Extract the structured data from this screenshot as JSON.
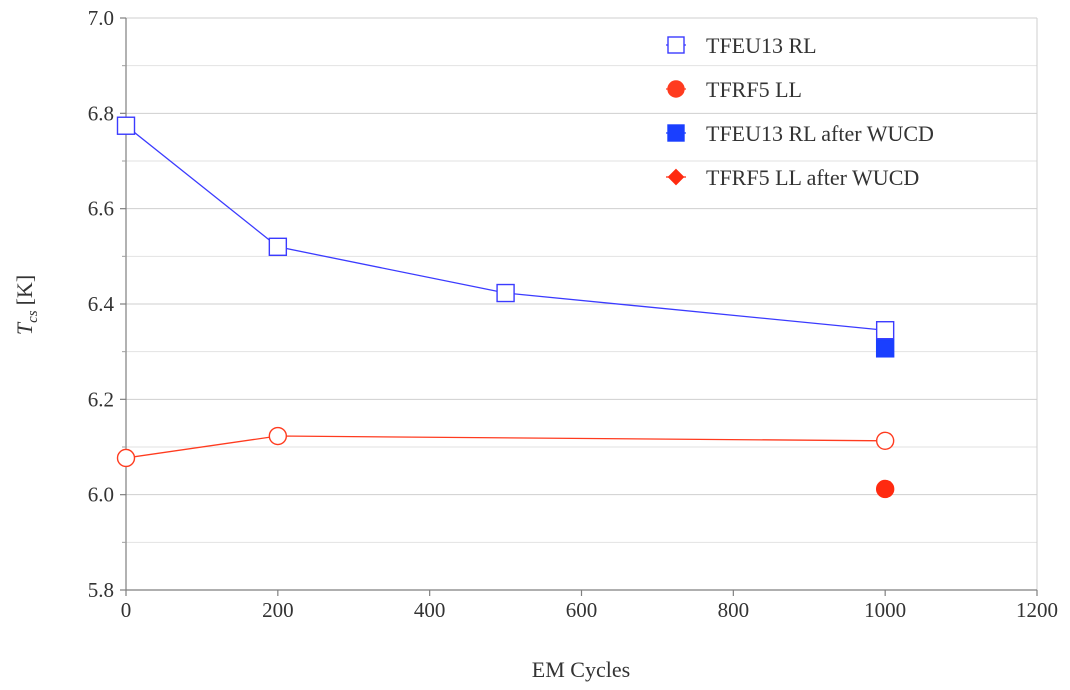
{
  "chart_data": {
    "type": "scatter",
    "title": "",
    "xlabel": "EM Cycles",
    "ylabel": {
      "main": "T",
      "subscript": "cs",
      "unit": "[K]"
    },
    "xlim": [
      0,
      1200
    ],
    "ylim": [
      5.8,
      7.0
    ],
    "xticks": [
      0,
      200,
      400,
      600,
      800,
      1000,
      1200
    ],
    "xtick_labels": [
      "0",
      "200",
      "400",
      "600",
      "800",
      "1000",
      "1200"
    ],
    "yticks": [
      5.8,
      6.0,
      6.2,
      6.4,
      6.6,
      6.8,
      7.0
    ],
    "ytick_labels": [
      "5.8",
      "6.0",
      "6.2",
      "6.4",
      "6.6",
      "6.8",
      "7.0"
    ],
    "grid": "horizontal",
    "legend_position": "top-right",
    "series": [
      {
        "name": "TFEU13 RL",
        "color": "#3b3bff",
        "marker": "square",
        "filled": false,
        "line": true,
        "x": [
          0,
          200,
          500,
          1000
        ],
        "y": [
          6.774,
          6.52,
          6.423,
          6.345
        ]
      },
      {
        "name": "TFRF5 LL",
        "color": "#ff3b1f",
        "marker": "circle",
        "filled": false,
        "line": true,
        "x": [
          0,
          200,
          1000
        ],
        "y": [
          6.077,
          6.123,
          6.113
        ]
      },
      {
        "name": "TFEU13 RL after WUCD",
        "color": "#1a3fff",
        "marker": "square",
        "filled": true,
        "line": false,
        "x": [
          1000
        ],
        "y": [
          6.307
        ]
      },
      {
        "name": "TFRF5 LL after WUCD",
        "color": "#ff2a10",
        "marker": "circle",
        "filled": true,
        "line": false,
        "x": [
          1000
        ],
        "y": [
          6.012
        ]
      }
    ],
    "legend": [
      {
        "label": "TFEU13 RL",
        "marker": "square",
        "filled": false,
        "color": "#3b3bff"
      },
      {
        "label": "TFRF5 LL",
        "marker": "circle",
        "filled": true,
        "color": "#ff3b1f"
      },
      {
        "label": "TFEU13 RL after WUCD",
        "marker": "square",
        "filled": true,
        "color": "#1a3fff"
      },
      {
        "label": "TFRF5 LL after WUCD",
        "marker": "diamond",
        "filled": true,
        "color": "#ff2a10"
      }
    ]
  }
}
